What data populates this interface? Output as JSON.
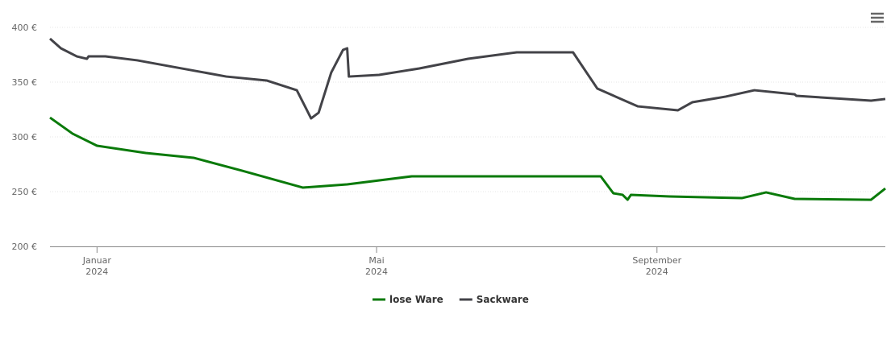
{
  "chart_data": {
    "type": "line",
    "series": [
      {
        "name": "lose Ware",
        "color": "#0a7a0a",
        "x": [
          2023.944,
          2023.971,
          2024.0,
          2024.058,
          2024.115,
          2024.173,
          2024.245,
          2024.298,
          2024.375,
          2024.6,
          2024.615,
          2024.626,
          2024.632,
          2024.636,
          2024.682,
          2024.768,
          2024.797,
          2024.831,
          2024.922,
          2024.939
        ],
        "values": [
          317.6,
          302.9,
          291.9,
          285.3,
          280.9,
          269.1,
          253.7,
          256.6,
          264.0,
          264.0,
          248.5,
          247.1,
          242.6,
          247.1,
          245.6,
          244.1,
          249.3,
          243.4,
          242.6,
          252.9
        ]
      },
      {
        "name": "Sackware",
        "color": "#434348",
        "x": [
          2023.944,
          2023.957,
          2023.976,
          2023.988,
          2023.99,
          2024.01,
          2024.048,
          2024.096,
          2024.154,
          2024.202,
          2024.238,
          2024.255,
          2024.264,
          2024.279,
          2024.293,
          2024.298,
          2024.3,
          2024.336,
          2024.384,
          2024.442,
          2024.5,
          2024.567,
          2024.596,
          2024.644,
          2024.692,
          2024.709,
          2024.749,
          2024.783,
          2024.831,
          2024.833,
          2024.922,
          2024.939
        ],
        "values": [
          389.7,
          380.9,
          373.5,
          371.3,
          373.5,
          373.5,
          369.9,
          363.2,
          355.1,
          351.5,
          342.6,
          316.9,
          322.1,
          358.8,
          379.4,
          380.9,
          355.1,
          356.6,
          362.5,
          371.3,
          377.2,
          377.2,
          344.1,
          327.9,
          324.3,
          331.6,
          336.8,
          342.6,
          338.9,
          337.5,
          333.1,
          334.6
        ]
      }
    ],
    "xlim": [
      2023.944,
      2024.939
    ],
    "xticks": [
      {
        "value": 2024.0,
        "label": "Januar 2024"
      },
      {
        "value": 2024.333,
        "label": "Mai 2024"
      },
      {
        "value": 2024.667,
        "label": "September 2024"
      }
    ],
    "ylim": [
      200,
      400
    ],
    "yticks": [
      {
        "value": 200,
        "label": "200 €"
      },
      {
        "value": 250,
        "label": "250 €"
      },
      {
        "value": 300,
        "label": "300 €"
      },
      {
        "value": 350,
        "label": "350 €"
      },
      {
        "value": 400,
        "label": "400 €"
      }
    ],
    "grid": true,
    "legend": "bottom"
  }
}
